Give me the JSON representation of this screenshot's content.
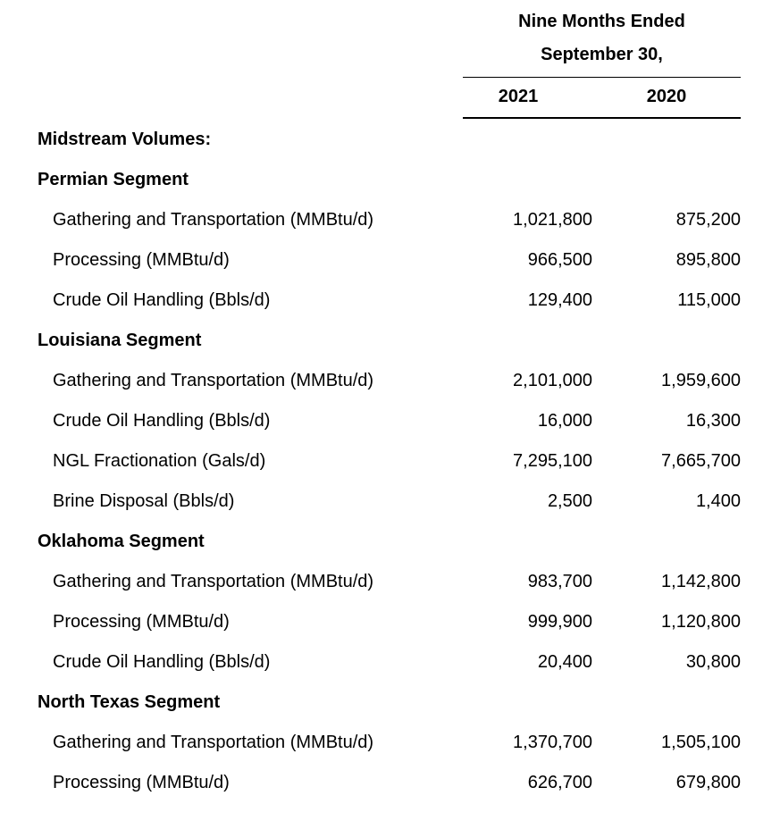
{
  "header": {
    "line1": "Nine Months Ended",
    "line2": "September 30,",
    "year1": "2021",
    "year2": "2020"
  },
  "rows": [
    {
      "type": "section",
      "label": "Midstream Volumes:",
      "v2021": "",
      "v2020": ""
    },
    {
      "type": "section",
      "label": "Permian Segment",
      "v2021": "",
      "v2020": ""
    },
    {
      "type": "item",
      "label": "Gathering and Transportation (MMBtu/d)",
      "v2021": "1,021,800",
      "v2020": "875,200"
    },
    {
      "type": "item",
      "label": "Processing (MMBtu/d)",
      "v2021": "966,500",
      "v2020": "895,800"
    },
    {
      "type": "item",
      "label": "Crude Oil Handling (Bbls/d)",
      "v2021": "129,400",
      "v2020": "115,000"
    },
    {
      "type": "section",
      "label": "Louisiana Segment",
      "v2021": "",
      "v2020": ""
    },
    {
      "type": "item",
      "label": "Gathering and Transportation (MMBtu/d)",
      "v2021": "2,101,000",
      "v2020": "1,959,600"
    },
    {
      "type": "item",
      "label": "Crude Oil Handling (Bbls/d)",
      "v2021": "16,000",
      "v2020": "16,300"
    },
    {
      "type": "item",
      "label": "NGL Fractionation (Gals/d)",
      "v2021": "7,295,100",
      "v2020": "7,665,700"
    },
    {
      "type": "item",
      "label": "Brine Disposal (Bbls/d)",
      "v2021": "2,500",
      "v2020": "1,400"
    },
    {
      "type": "section",
      "label": "Oklahoma Segment",
      "v2021": "",
      "v2020": ""
    },
    {
      "type": "item",
      "label": "Gathering and Transportation (MMBtu/d)",
      "v2021": "983,700",
      "v2020": "1,142,800"
    },
    {
      "type": "item",
      "label": "Processing (MMBtu/d)",
      "v2021": "999,900",
      "v2020": "1,120,800"
    },
    {
      "type": "item",
      "label": "Crude Oil Handling (Bbls/d)",
      "v2021": "20,400",
      "v2020": "30,800"
    },
    {
      "type": "section",
      "label": "North Texas Segment",
      "v2021": "",
      "v2020": ""
    },
    {
      "type": "item",
      "label": "Gathering and Transportation (MMBtu/d)",
      "v2021": "1,370,700",
      "v2020": "1,505,100"
    },
    {
      "type": "item",
      "label": "Processing (MMBtu/d)",
      "v2021": "626,700",
      "v2020": "679,800"
    }
  ]
}
